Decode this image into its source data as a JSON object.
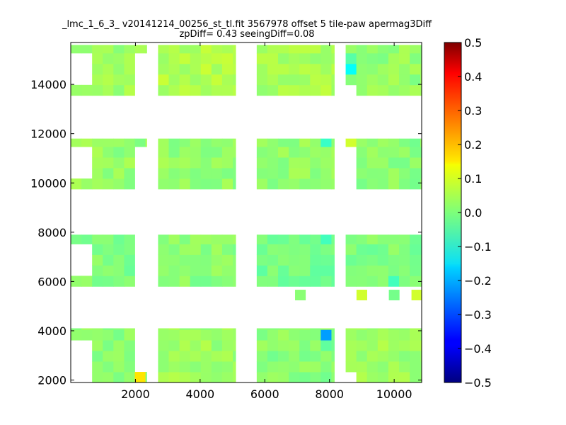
{
  "chart_data": {
    "type": "heatmap",
    "title": "_lmc_1_6_3_ v20141214_00256_st_tl.fit 3567978 offset 5 tile-paw apermag3Diff",
    "subtitle": "zpDiff= 0.43 seeingDiff=0.08",
    "xlabel": "",
    "ylabel": "",
    "xlim": [
      0,
      10850
    ],
    "ylim": [
      1900,
      15700
    ],
    "x_ticks": [
      "2000",
      "4000",
      "6000",
      "8000",
      "10000"
    ],
    "x_tick_values": [
      2000,
      4000,
      6000,
      8000,
      10000
    ],
    "y_ticks": [
      "2000",
      "4000",
      "6000",
      "8000",
      "10000",
      "12000",
      "14000"
    ],
    "y_tick_values": [
      2000,
      4000,
      6000,
      8000,
      10000,
      12000,
      14000
    ],
    "colormap": "jet",
    "colorbar": {
      "range": [
        -0.5,
        0.5
      ],
      "ticks": [
        "0.5",
        "0.4",
        "0.3",
        "0.2",
        "0.1",
        "0.0",
        "−0.1",
        "−0.2",
        "−0.3",
        "−0.4",
        "−0.5"
      ],
      "tick_values": [
        0.5,
        0.4,
        0.3,
        0.2,
        0.1,
        0.0,
        -0.1,
        -0.2,
        -0.3,
        -0.4,
        -0.5
      ]
    },
    "cell_size": [
      330,
      430
    ],
    "grid": false,
    "blocks": [
      {
        "x": [
          0,
          2350
        ],
        "y": [
          1900,
          4100
        ],
        "value": 0.01
      },
      {
        "x": [
          2700,
          5100
        ],
        "y": [
          1900,
          4100
        ],
        "value": 0.03
      },
      {
        "x": [
          5750,
          8150
        ],
        "y": [
          1900,
          4100
        ],
        "value": 0.01
      },
      {
        "x": [
          8500,
          10850
        ],
        "y": [
          1900,
          4100
        ],
        "value": 0.03
      },
      {
        "x": [
          0,
          2350
        ],
        "y": [
          5800,
          7900
        ],
        "value": 0.0
      },
      {
        "x": [
          2700,
          5100
        ],
        "y": [
          5800,
          7900
        ],
        "value": 0.01
      },
      {
        "x": [
          5750,
          8150
        ],
        "y": [
          5800,
          7900
        ],
        "value": -0.01
      },
      {
        "x": [
          8500,
          10850
        ],
        "y": [
          5800,
          7900
        ],
        "value": 0.0
      },
      {
        "x": [
          0,
          2350
        ],
        "y": [
          9750,
          11800
        ],
        "value": 0.02
      },
      {
        "x": [
          2700,
          5100
        ],
        "y": [
          9750,
          11800
        ],
        "value": 0.02
      },
      {
        "x": [
          5750,
          8150
        ],
        "y": [
          9750,
          11800
        ],
        "value": 0.02
      },
      {
        "x": [
          8500,
          10850
        ],
        "y": [
          9750,
          11800
        ],
        "value": 0.01
      },
      {
        "x": [
          0,
          2350
        ],
        "y": [
          13550,
          15600
        ],
        "value": 0.03
      },
      {
        "x": [
          2700,
          5100
        ],
        "y": [
          13550,
          15600
        ],
        "value": 0.05
      },
      {
        "x": [
          5750,
          8150
        ],
        "y": [
          13550,
          15600
        ],
        "value": 0.04
      },
      {
        "x": [
          8500,
          10850
        ],
        "y": [
          13550,
          15600
        ],
        "value": 0.02
      }
    ],
    "cell_overrides": [
      {
        "x": 8000,
        "y": 3850,
        "value": -0.22
      },
      {
        "x": 8000,
        "y": 3450,
        "value": -0.03
      },
      {
        "x": 8000,
        "y": 11600,
        "value": -0.07
      },
      {
        "x": 8000,
        "y": 7700,
        "value": -0.06
      },
      {
        "x": 8700,
        "y": 14550,
        "value": -0.12
      },
      {
        "x": 8700,
        "y": 15000,
        "value": -0.04
      },
      {
        "x": 2200,
        "y": 2150,
        "value": 0.15
      },
      {
        "x": 8700,
        "y": 11600,
        "value": 0.08
      },
      {
        "x": 9000,
        "y": 5450,
        "value": 0.08
      },
      {
        "x": 10700,
        "y": 5450,
        "value": 0.08
      },
      {
        "x": 7100,
        "y": 5450,
        "value": 0.01
      },
      {
        "x": 10000,
        "y": 5450,
        "value": -0.01
      },
      {
        "x": 10100,
        "y": 6150,
        "value": -0.06
      }
    ],
    "empty_regions": [
      {
        "x": [
          0,
          650
        ],
        "y": [
          1900,
          3700
        ]
      },
      {
        "x": [
          8500,
          8900
        ],
        "y": [
          1900,
          2350
        ]
      },
      {
        "x": [
          8150,
          8500
        ],
        "y": [
          1900,
          2350
        ]
      },
      {
        "x": [
          0,
          650
        ],
        "y": [
          6200,
          7500
        ]
      },
      {
        "x": [
          0,
          650
        ],
        "y": [
          10150,
          11350
        ]
      },
      {
        "x": [
          8500,
          8900
        ],
        "y": [
          9750,
          11350
        ]
      },
      {
        "x": [
          0,
          650
        ],
        "y": [
          13950,
          15150
        ]
      },
      {
        "x": [
          8500,
          8900
        ],
        "y": [
          13550,
          14050
        ]
      },
      {
        "x": [
          2050,
          2350
        ],
        "y": [
          9750,
          11350
        ]
      },
      {
        "x": [
          2050,
          2350
        ],
        "y": [
          13550,
          15200
        ]
      },
      {
        "x": [
          2050,
          2350
        ],
        "y": [
          5800,
          7900
        ]
      },
      {
        "x": [
          2050,
          2350
        ],
        "y": [
          2350,
          4100
        ]
      }
    ]
  }
}
